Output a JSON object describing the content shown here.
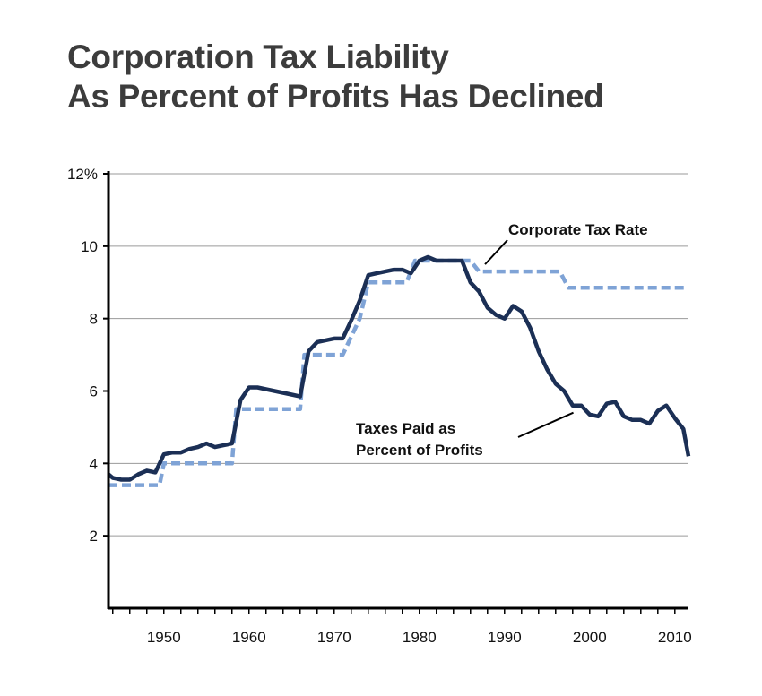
{
  "chart_data": {
    "type": "line",
    "title": "Corporation Tax Liability As Percent of Profits Has Declined",
    "title_lines": [
      "Corporation Tax Liability",
      "As Percent of Profits Has Declined"
    ],
    "xlabel": "",
    "ylabel": "",
    "xlim": [
      1943.5,
      2011.6
    ],
    "ylim": [
      0,
      12
    ],
    "grid": "horizontal",
    "x_ticks": [
      1950,
      1960,
      1970,
      1980,
      1990,
      2000,
      2010
    ],
    "x_tick_labels": [
      "1950",
      "1960",
      "1970",
      "1980",
      "1990",
      "2000",
      "2010"
    ],
    "y_ticks": [
      2,
      4,
      6,
      8,
      10,
      12
    ],
    "y_tick_labels": [
      "2",
      "4",
      "6",
      "8",
      "10",
      "12%"
    ],
    "series": [
      {
        "name": "Taxes Paid as Percent of Profits",
        "style": "solid",
        "color": "#1b2f55",
        "x": [
          1943.5,
          1944,
          1945,
          1946,
          1947,
          1948,
          1949,
          1950,
          1951,
          1952,
          1953,
          1954,
          1955,
          1956,
          1957,
          1958,
          1959,
          1960,
          1961,
          1962,
          1963,
          1964,
          1965,
          1966,
          1967,
          1968,
          1969,
          1970,
          1971,
          1972,
          1973,
          1974,
          1975,
          1976,
          1977,
          1978,
          1979,
          1980,
          1981,
          1982,
          1983,
          1984,
          1985,
          1986,
          1987,
          1988,
          1989,
          1990,
          1991,
          1992,
          1993,
          1994,
          1995,
          1996,
          1997,
          1998,
          1999,
          2000,
          2001,
          2002,
          2003,
          2004,
          2005,
          2006,
          2007,
          2008,
          2009,
          2010,
          2011,
          2011.6
        ],
        "values": [
          3.7,
          3.6,
          3.55,
          3.55,
          3.7,
          3.8,
          3.75,
          4.25,
          4.3,
          4.3,
          4.4,
          4.45,
          4.55,
          4.45,
          4.5,
          4.55,
          5.75,
          6.1,
          6.1,
          6.05,
          6.0,
          5.95,
          5.9,
          5.85,
          7.1,
          7.35,
          7.4,
          7.45,
          7.45,
          7.95,
          8.5,
          9.2,
          9.25,
          9.3,
          9.35,
          9.35,
          9.25,
          9.6,
          9.7,
          9.6,
          9.6,
          9.6,
          9.6,
          9.0,
          8.75,
          8.3,
          8.1,
          8.0,
          8.35,
          8.2,
          7.75,
          7.1,
          6.6,
          6.2,
          6.0,
          5.6,
          5.6,
          5.35,
          5.3,
          5.65,
          5.7,
          5.3,
          5.2,
          5.2,
          5.1,
          5.45,
          5.6,
          5.25,
          4.95,
          4.2
        ]
      },
      {
        "name": "Corporate Tax Rate",
        "style": "dashed",
        "color": "#7fa3d6",
        "x": [
          1943.5,
          1949.5,
          1950,
          1958,
          1958.5,
          1966,
          1966.5,
          1970.5,
          1971,
          1973,
          1974,
          1978.5,
          1979.5,
          1986,
          1987,
          1996.5,
          1997.5,
          2011.6
        ],
        "values": [
          3.4,
          3.4,
          4.0,
          4.0,
          5.5,
          5.5,
          7.0,
          7.0,
          7.0,
          8.0,
          9.0,
          9.0,
          9.6,
          9.6,
          9.3,
          9.3,
          8.85,
          8.85
        ]
      }
    ],
    "annotations": [
      {
        "text": "Corporate Tax Rate",
        "points_to": "Corporate Tax Rate",
        "at": [
          1987.5,
          9.3
        ]
      },
      {
        "text_lines": [
          "Taxes Paid as",
          "Percent of Profits"
        ],
        "points_to": "Taxes Paid as Percent of Profits",
        "at": [
          1998.5,
          5.55
        ]
      }
    ],
    "legend": "none (inline annotations)"
  }
}
